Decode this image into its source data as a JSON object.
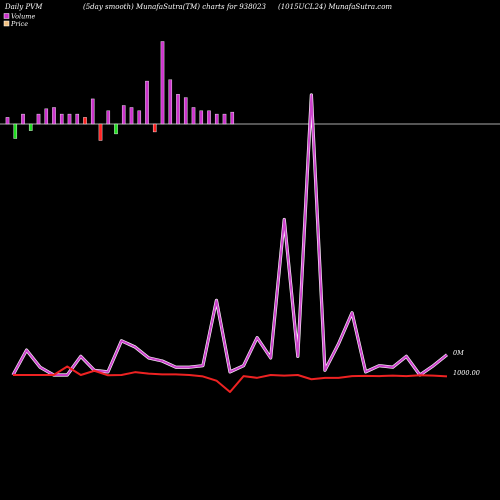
{
  "header": {
    "left": "Daily PVM",
    "center": "(5day smooth) MunafaSutra(TM) charts for 938023",
    "right": "(1015UCL24) MunafaSutra.com"
  },
  "legend": {
    "volume_label": "Volume",
    "price_label": "Price"
  },
  "colors": {
    "background": "#000000",
    "volume_up": "#cc33cc",
    "volume_down_red": "#ff2222",
    "volume_down_green": "#22dd22",
    "baseline": "#aaaaaa",
    "volume_line": "#cc44cc",
    "price_line": "#ee2222"
  },
  "chart_data": {
    "type": "bar+line",
    "labels": {
      "volume_axis": "0M",
      "price_axis": "1000.00"
    },
    "bar_series": [
      {
        "value": 1.0,
        "color": "magenta"
      },
      {
        "value": -2.2,
        "color": "green"
      },
      {
        "value": 1.5,
        "color": "magenta"
      },
      {
        "value": -1.0,
        "color": "green"
      },
      {
        "value": 1.5,
        "color": "magenta"
      },
      {
        "value": 2.3,
        "color": "magenta"
      },
      {
        "value": 2.5,
        "color": "magenta"
      },
      {
        "value": 1.5,
        "color": "magenta"
      },
      {
        "value": 1.5,
        "color": "magenta"
      },
      {
        "value": 1.5,
        "color": "magenta"
      },
      {
        "value": 1.0,
        "color": "red"
      },
      {
        "value": 3.8,
        "color": "magenta"
      },
      {
        "value": -2.5,
        "color": "red"
      },
      {
        "value": 2.0,
        "color": "magenta"
      },
      {
        "value": -1.5,
        "color": "green"
      },
      {
        "value": 2.8,
        "color": "magenta"
      },
      {
        "value": 2.5,
        "color": "magenta"
      },
      {
        "value": 2.0,
        "color": "magenta"
      },
      {
        "value": 6.5,
        "color": "magenta"
      },
      {
        "value": -1.2,
        "color": "red"
      },
      {
        "value": 12.5,
        "color": "magenta"
      },
      {
        "value": 6.7,
        "color": "magenta"
      },
      {
        "value": 4.5,
        "color": "magenta"
      },
      {
        "value": 4.0,
        "color": "magenta"
      },
      {
        "value": 2.5,
        "color": "magenta"
      },
      {
        "value": 2.0,
        "color": "magenta"
      },
      {
        "value": 2.0,
        "color": "magenta"
      },
      {
        "value": 1.5,
        "color": "magenta"
      },
      {
        "value": 1.5,
        "color": "magenta"
      },
      {
        "value": 1.8,
        "color": "magenta"
      }
    ],
    "volume_line": [
      0,
      0.8,
      0.25,
      0,
      0,
      0.6,
      0.15,
      0.1,
      1.1,
      0.9,
      0.55,
      0.45,
      0.25,
      0.25,
      0.3,
      2.4,
      0.1,
      0.3,
      1.2,
      0.55,
      5.0,
      0.6,
      9.0,
      0.15,
      1.0,
      2.0,
      0.1,
      0.3,
      0.25,
      0.6,
      0,
      0.3,
      0.65
    ],
    "price_line": [
      1000.0,
      1000.0,
      1000.0,
      1000.0,
      1003.0,
      1000.0,
      1001.5,
      999.9,
      1000.0,
      1001.0,
      1000.5,
      1000.2,
      1000.2,
      1000.0,
      999.5,
      998.0,
      994.0,
      999.6,
      999.0,
      1000.0,
      999.8,
      1000.0,
      998.5,
      999.0,
      999.0,
      999.6,
      999.7,
      999.6,
      999.8,
      999.6,
      999.9,
      999.8,
      999.5
    ]
  }
}
